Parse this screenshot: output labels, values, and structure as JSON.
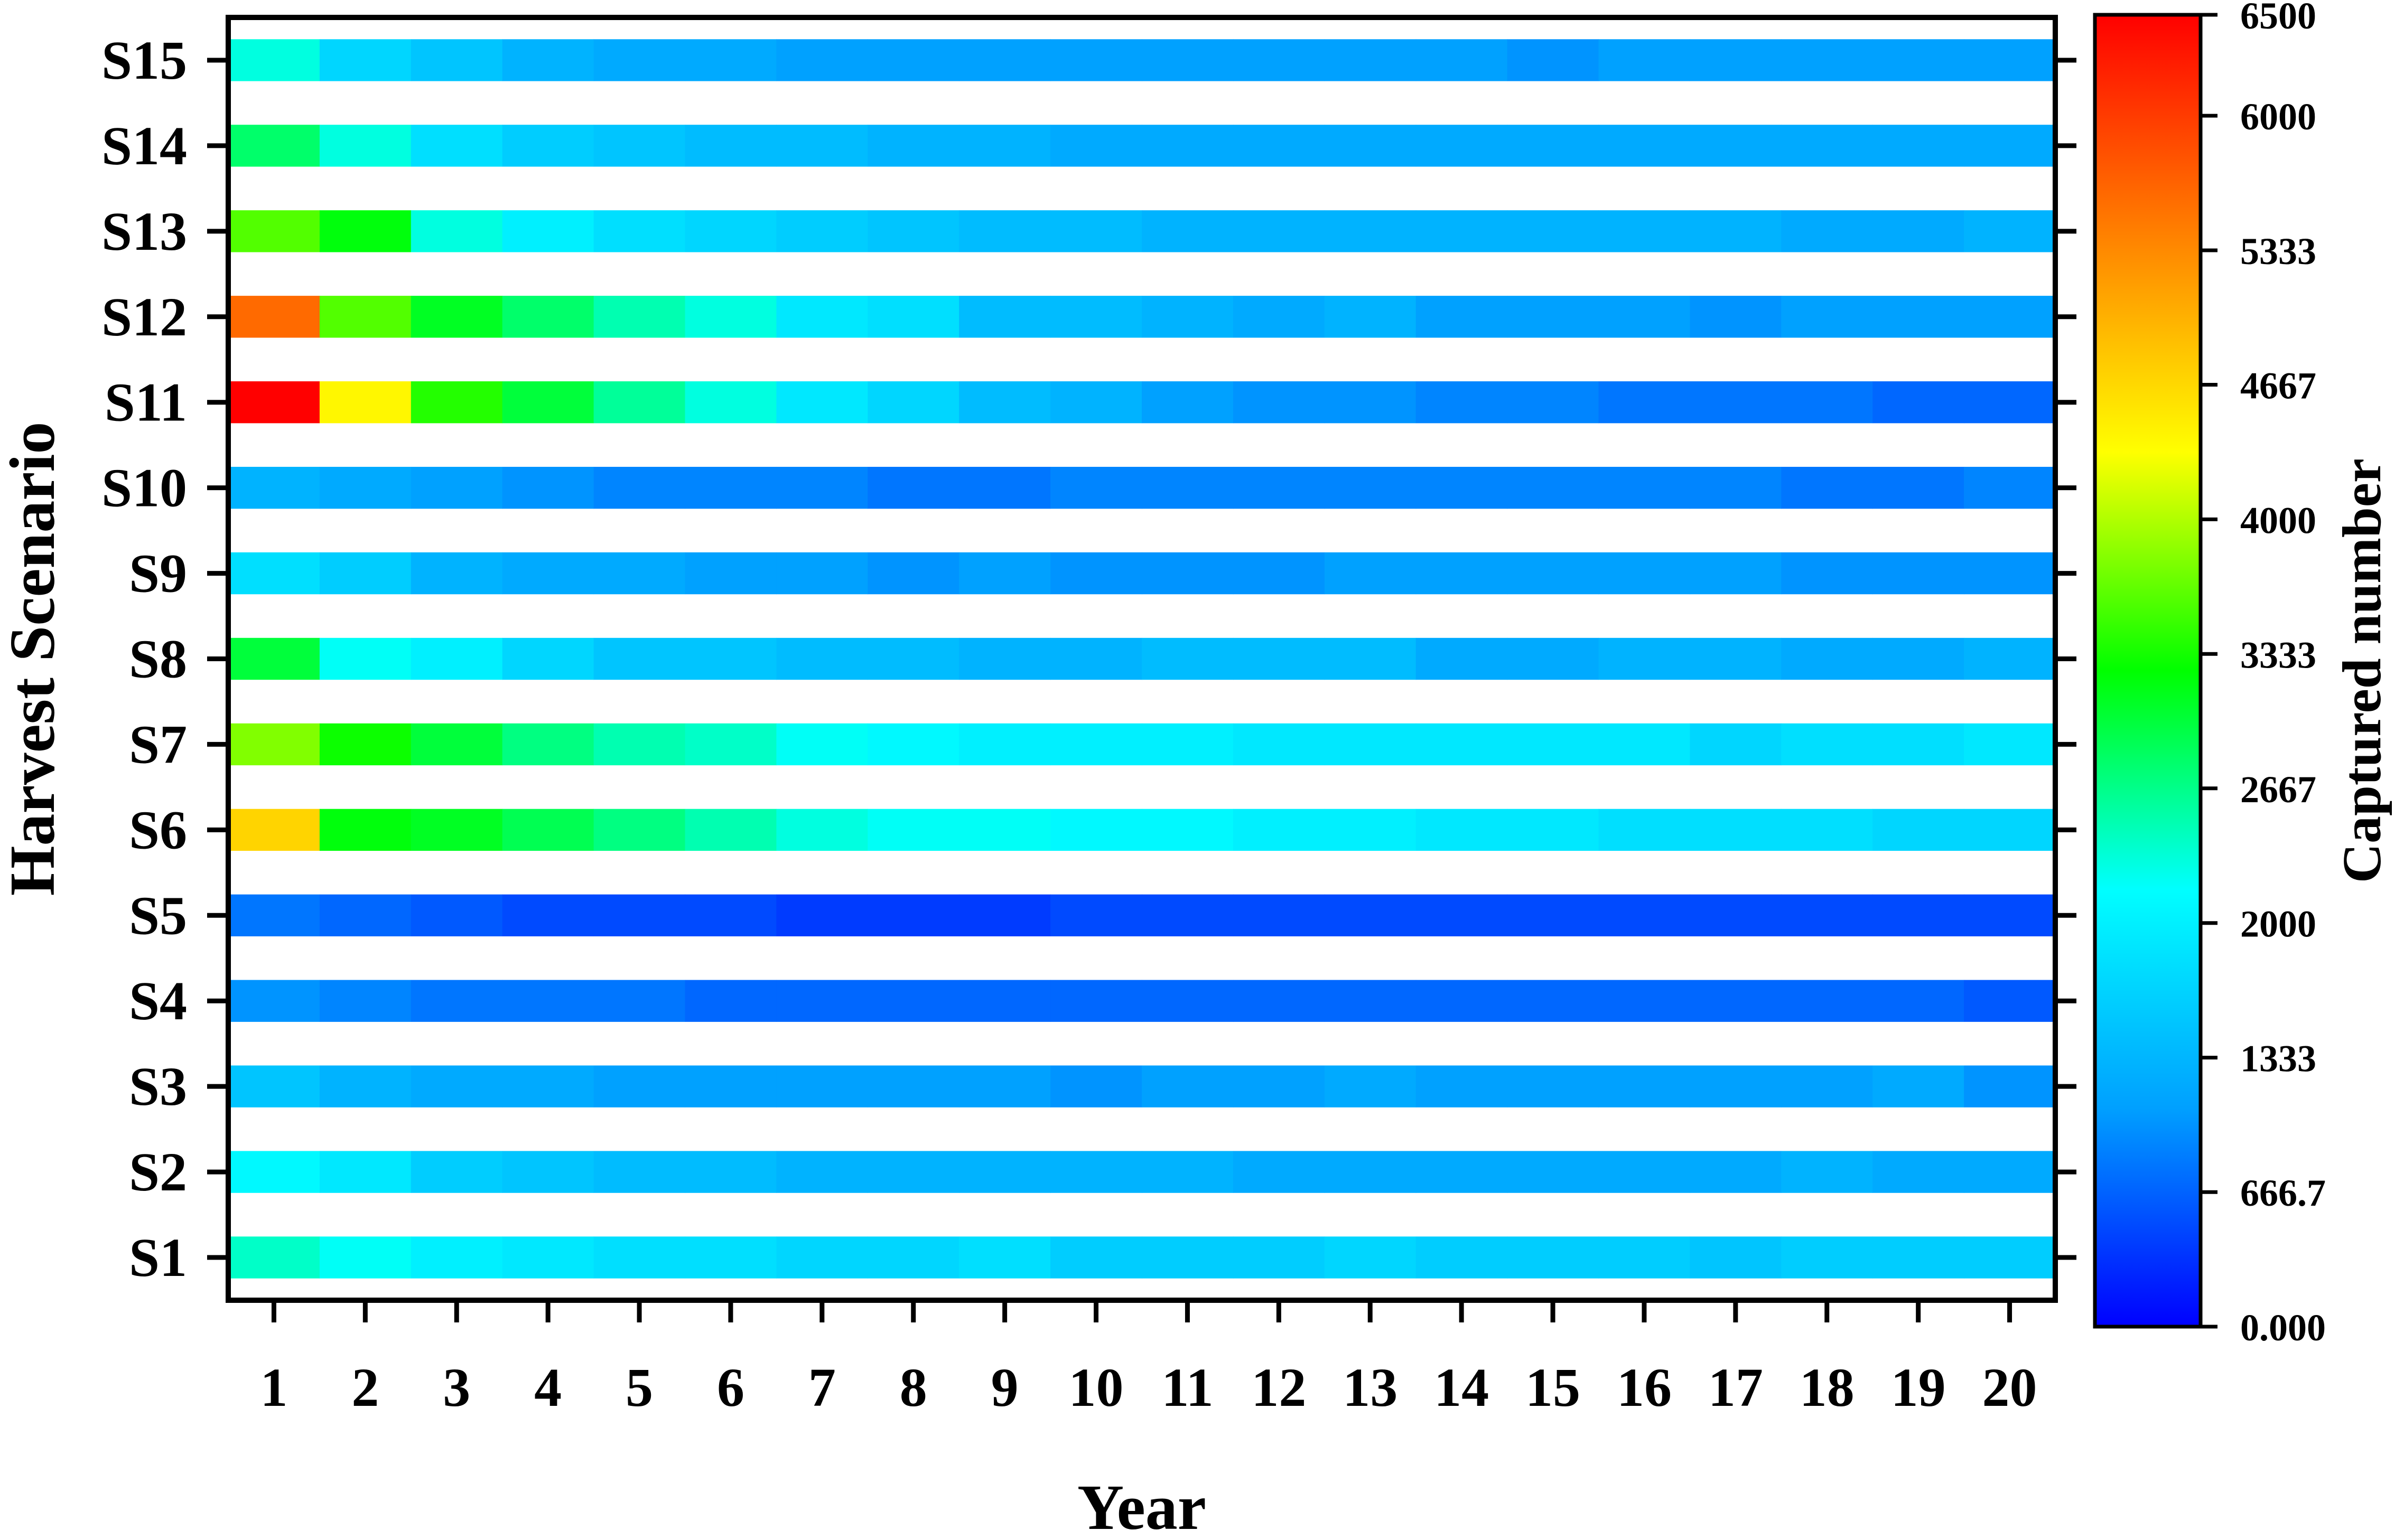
{
  "chart_data": {
    "type": "heatmap",
    "xlabel": "Year",
    "ylabel": "Harvest Scenario",
    "colorbar_label": "Captured number",
    "x": [
      1,
      2,
      3,
      4,
      5,
      6,
      7,
      8,
      9,
      10,
      11,
      12,
      13,
      14,
      15,
      16,
      17,
      18,
      19,
      20
    ],
    "rows": [
      "S1",
      "S2",
      "S3",
      "S4",
      "S5",
      "S6",
      "S7",
      "S8",
      "S9",
      "S10",
      "S11",
      "S12",
      "S13",
      "S14",
      "S15"
    ],
    "colorbar_ticks": [
      "0.000",
      "666.7",
      "1333",
      "2000",
      "2667",
      "3333",
      "4000",
      "4667",
      "5333",
      "6000",
      "6500"
    ],
    "colorbar_tick_values": [
      0,
      666.7,
      1333,
      2000,
      2667,
      3333,
      4000,
      4667,
      5333,
      6000,
      6500
    ],
    "vmin": 0,
    "vmax": 6500,
    "colormap": [
      "#0000ff",
      "#00a0ff",
      "#00ffff",
      "#00ff00",
      "#ffff00",
      "#ff8000",
      "#ff0000"
    ],
    "values": [
      [
        2400,
        2200,
        2000,
        1900,
        1800,
        1800,
        1700,
        1700,
        1800,
        1600,
        1600,
        1600,
        1700,
        1600,
        1600,
        1600,
        1500,
        1600,
        1600,
        1600
      ],
      [
        2100,
        1900,
        1600,
        1500,
        1400,
        1400,
        1300,
        1300,
        1300,
        1300,
        1300,
        1200,
        1200,
        1200,
        1200,
        1200,
        1200,
        1300,
        1200,
        1200
      ],
      [
        1500,
        1300,
        1200,
        1200,
        1100,
        1100,
        1100,
        1100,
        1100,
        1000,
        1100,
        1100,
        1200,
        1100,
        1100,
        1100,
        1100,
        1100,
        1200,
        1000
      ],
      [
        1000,
        900,
        800,
        800,
        800,
        700,
        700,
        700,
        700,
        700,
        700,
        700,
        700,
        700,
        700,
        700,
        700,
        700,
        700,
        600
      ],
      [
        800,
        700,
        600,
        500,
        500,
        500,
        400,
        400,
        400,
        500,
        500,
        500,
        500,
        500,
        500,
        500,
        500,
        500,
        500,
        500
      ],
      [
        4700,
        3200,
        3100,
        2900,
        2700,
        2500,
        2300,
        2200,
        2200,
        2100,
        2100,
        2000,
        2000,
        1900,
        1900,
        1800,
        1800,
        1800,
        1700,
        1700
      ],
      [
        3800,
        3300,
        3000,
        2700,
        2500,
        2400,
        2200,
        2100,
        2000,
        2000,
        2000,
        1900,
        1900,
        1900,
        1900,
        1900,
        1700,
        1800,
        1800,
        1900
      ],
      [
        3000,
        2200,
        2000,
        1700,
        1500,
        1500,
        1400,
        1400,
        1300,
        1300,
        1400,
        1400,
        1400,
        1200,
        1200,
        1300,
        1300,
        1200,
        1200,
        1300
      ],
      [
        1800,
        1600,
        1300,
        1200,
        1200,
        1100,
        1100,
        1000,
        1100,
        1000,
        1000,
        1000,
        1100,
        1100,
        1100,
        1100,
        1100,
        1000,
        1000,
        1000
      ],
      [
        1300,
        1200,
        1100,
        1000,
        900,
        900,
        900,
        800,
        800,
        900,
        900,
        900,
        900,
        900,
        900,
        900,
        900,
        800,
        800,
        900
      ],
      [
        6500,
        4400,
        3400,
        3000,
        2600,
        2300,
        1900,
        1700,
        1400,
        1300,
        1100,
        1000,
        1000,
        900,
        900,
        800,
        800,
        800,
        700,
        700
      ],
      [
        5600,
        3600,
        3100,
        2800,
        2500,
        2300,
        1900,
        1800,
        1400,
        1400,
        1300,
        1200,
        1300,
        1100,
        1100,
        1100,
        1000,
        1100,
        1100,
        1100
      ],
      [
        3600,
        3200,
        2300,
        2000,
        1800,
        1700,
        1600,
        1500,
        1400,
        1400,
        1300,
        1300,
        1300,
        1300,
        1300,
        1300,
        1300,
        1200,
        1200,
        1300
      ],
      [
        2800,
        2300,
        1800,
        1600,
        1500,
        1400,
        1400,
        1300,
        1300,
        1200,
        1200,
        1200,
        1200,
        1200,
        1200,
        1200,
        1200,
        1200,
        1200,
        1200
      ],
      [
        2300,
        1700,
        1500,
        1300,
        1200,
        1200,
        1100,
        1100,
        1100,
        1100,
        1100,
        1100,
        1100,
        1100,
        1000,
        1100,
        1100,
        1100,
        1100,
        1100
      ]
    ]
  }
}
